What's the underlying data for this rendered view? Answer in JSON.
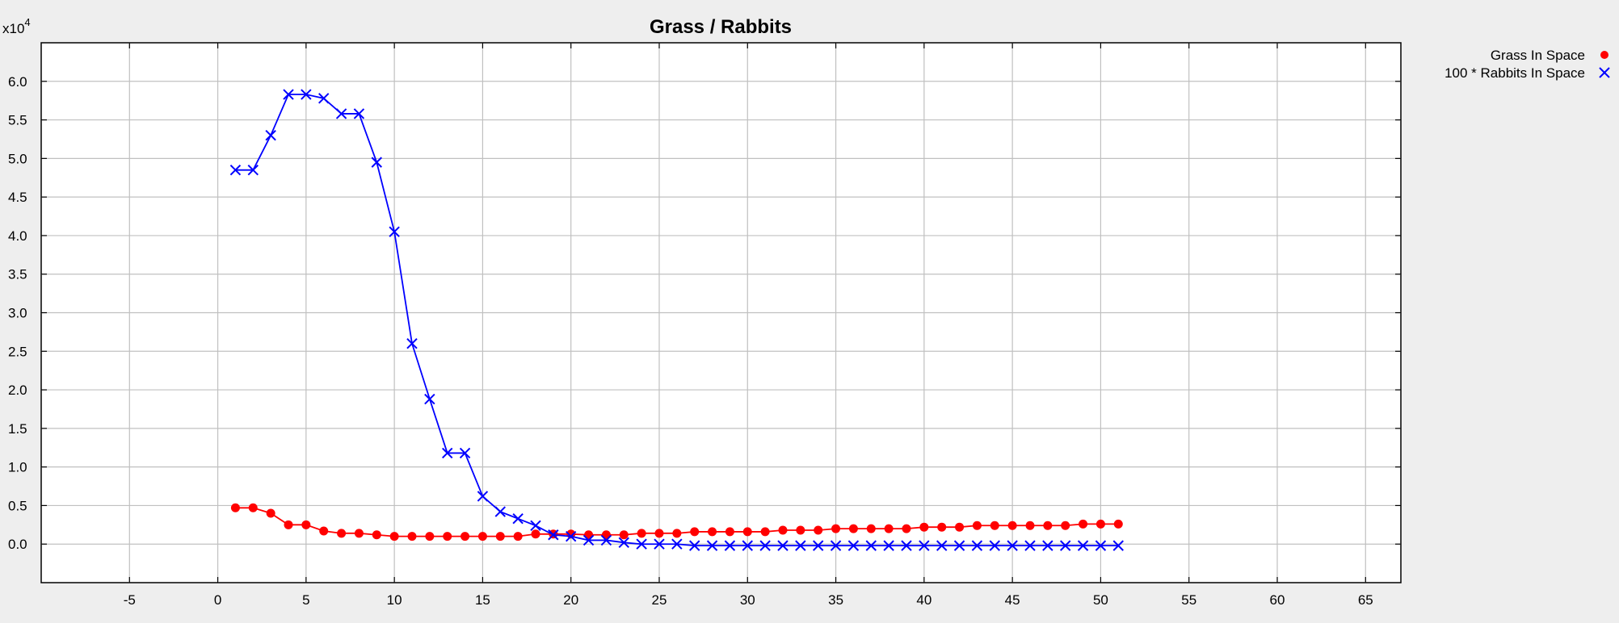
{
  "chart_data": {
    "type": "line",
    "title": "Grass / Rabbits",
    "xlabel": "",
    "ylabel": "",
    "y_multiplier": "x10",
    "y_exponent": "4",
    "xlim": [
      -10,
      67
    ],
    "ylim": [
      -0.5,
      6.5
    ],
    "x_ticks": [
      -5,
      0,
      5,
      10,
      15,
      20,
      25,
      30,
      35,
      40,
      45,
      50,
      55,
      60,
      65
    ],
    "y_ticks": [
      0.0,
      0.5,
      1.0,
      1.5,
      2.0,
      2.5,
      3.0,
      3.5,
      4.0,
      4.5,
      5.0,
      5.5,
      6.0
    ],
    "y_tick_labels": [
      "0.0",
      "0.5",
      "1.0",
      "1.5",
      "2.0",
      "2.5",
      "3.0",
      "3.5",
      "4.0",
      "4.5",
      "5.0",
      "5.5",
      "6.0"
    ],
    "grid": true,
    "legend_position": "outside-top-right",
    "series": [
      {
        "name": "Grass In Space",
        "color": "#ff0000",
        "marker": "circle",
        "x": [
          1,
          2,
          3,
          4,
          5,
          6,
          7,
          8,
          9,
          10,
          11,
          12,
          13,
          14,
          15,
          16,
          17,
          18,
          19,
          20,
          21,
          22,
          23,
          24,
          25,
          26,
          27,
          28,
          29,
          30,
          31,
          32,
          33,
          34,
          35,
          36,
          37,
          38,
          39,
          40,
          41,
          42,
          43,
          44,
          45,
          46,
          47,
          48,
          49,
          50,
          51
        ],
        "y": [
          0.47,
          0.47,
          0.4,
          0.25,
          0.25,
          0.17,
          0.14,
          0.14,
          0.12,
          0.1,
          0.1,
          0.1,
          0.1,
          0.1,
          0.1,
          0.1,
          0.1,
          0.13,
          0.13,
          0.13,
          0.12,
          0.12,
          0.12,
          0.14,
          0.14,
          0.14,
          0.16,
          0.16,
          0.16,
          0.16,
          0.16,
          0.18,
          0.18,
          0.18,
          0.2,
          0.2,
          0.2,
          0.2,
          0.2,
          0.22,
          0.22,
          0.22,
          0.24,
          0.24,
          0.24,
          0.24,
          0.24,
          0.24,
          0.26,
          0.26,
          0.26
        ]
      },
      {
        "name": "100 * Rabbits In Space",
        "color": "#0000ff",
        "marker": "x",
        "x": [
          1,
          2,
          3,
          4,
          5,
          6,
          7,
          8,
          9,
          10,
          11,
          12,
          13,
          14,
          15,
          16,
          17,
          18,
          19,
          20,
          21,
          22,
          23,
          24,
          25,
          26,
          27,
          28,
          29,
          30,
          31,
          32,
          33,
          34,
          35,
          36,
          37,
          38,
          39,
          40,
          41,
          42,
          43,
          44,
          45,
          46,
          47,
          48,
          49,
          50,
          51
        ],
        "y": [
          4.85,
          4.85,
          5.3,
          5.83,
          5.83,
          5.78,
          5.58,
          5.58,
          4.95,
          4.05,
          2.6,
          1.88,
          1.18,
          1.18,
          0.62,
          0.42,
          0.33,
          0.24,
          0.12,
          0.1,
          0.05,
          0.05,
          0.02,
          0.0,
          0.0,
          0.0,
          -0.02,
          -0.02,
          -0.02,
          -0.02,
          -0.02,
          -0.02,
          -0.02,
          -0.02,
          -0.02,
          -0.02,
          -0.02,
          -0.02,
          -0.02,
          -0.02,
          -0.02,
          -0.02,
          -0.02,
          -0.02,
          -0.02,
          -0.02,
          -0.02,
          -0.02,
          -0.02,
          -0.02,
          -0.02
        ]
      }
    ]
  }
}
